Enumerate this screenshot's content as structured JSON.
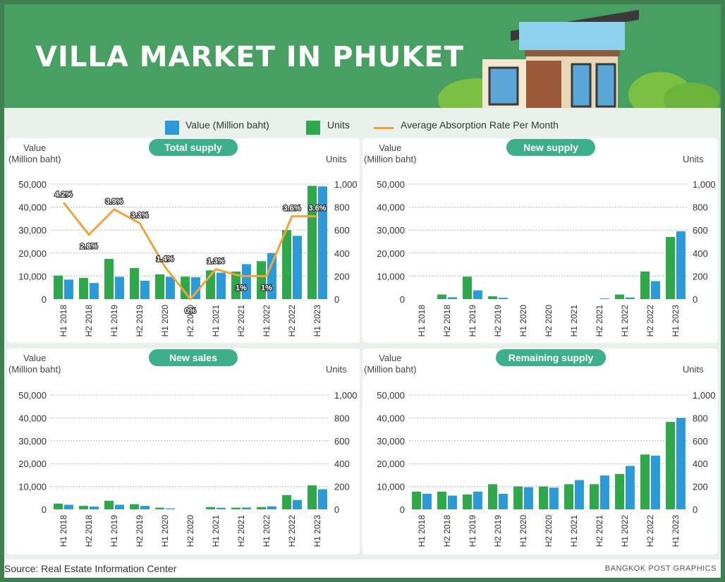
{
  "title": "VILLA MARKET IN PHUKET",
  "legend": {
    "value": "Value (Million baht)",
    "units": "Units",
    "rate": "Average Absorption Rate Per Month"
  },
  "colors": {
    "value": "#2b9ad9",
    "units": "#2ea84a",
    "rate": "#f2a33a",
    "pill": "#3db08a"
  },
  "axis_titles": {
    "left": "Value\n(Million baht)",
    "right": "Units"
  },
  "source": "Source: Real Estate Information Center",
  "credit": "BANGKOK POST GRAPHICS",
  "chart_data": [
    {
      "type": "bar",
      "title": "Total supply",
      "categories": [
        "H1 2018",
        "H2 2018",
        "H1 2019",
        "H2 2019",
        "H1 2020",
        "H2 2020",
        "H1 2021",
        "H2 2021",
        "H1 2022",
        "H2 2022",
        "H1 2023"
      ],
      "ylim": [
        0,
        50000
      ],
      "y2lim": [
        0,
        1000
      ],
      "yticks": [
        "0",
        "10,000",
        "20,000",
        "30,000",
        "40,000",
        "50,000"
      ],
      "y2ticks": [
        "0",
        "200",
        "400",
        "600",
        "800",
        "1,000"
      ],
      "series": [
        {
          "name": "Units",
          "axis": "right",
          "values": [
            205,
            185,
            350,
            270,
            215,
            195,
            250,
            240,
            330,
            600,
            985
          ]
        },
        {
          "name": "Value (Million baht)",
          "axis": "right_value",
          "values": [
            8500,
            7000,
            9700,
            8000,
            9700,
            9500,
            11500,
            15200,
            20000,
            27500,
            49000
          ]
        },
        {
          "name": "Average Absorption Rate Per Month",
          "type": "line",
          "values": [
            4.2,
            2.8,
            3.9,
            3.3,
            1.4,
            0,
            1.3,
            1,
            1,
            3.6,
            3.6
          ],
          "labels": [
            "4.2%",
            "2.8%",
            "3.9%",
            "3.3%",
            "1.4%",
            "0%",
            "1.3%",
            "1%",
            "1%",
            "3.6%",
            "3.6%"
          ]
        }
      ]
    },
    {
      "type": "bar",
      "title": "New supply",
      "categories": [
        "H1 2018",
        "H2 2018",
        "H1 2019",
        "H2 2019",
        "H1 2020",
        "H2 2020",
        "H1 2021",
        "H2 2021",
        "H1 2022",
        "H2 2022",
        "H1 2023"
      ],
      "ylim": [
        0,
        50000
      ],
      "y2lim": [
        0,
        1000
      ],
      "yticks": [
        "0",
        "10,000",
        "20,000",
        "30,000",
        "40,000",
        "50,000"
      ],
      "y2ticks": [
        "0",
        "200",
        "400",
        "600",
        "800",
        "1,000"
      ],
      "series": [
        {
          "name": "Units",
          "values": [
            0,
            40,
            195,
            25,
            0,
            0,
            0,
            0,
            40,
            240,
            540
          ]
        },
        {
          "name": "Value (Million baht)",
          "values": [
            0,
            800,
            3800,
            600,
            0,
            0,
            0,
            300,
            700,
            7800,
            29500
          ]
        }
      ]
    },
    {
      "type": "bar",
      "title": "New sales",
      "categories": [
        "H1 2018",
        "H2 2018",
        "H1 2019",
        "H2 2019",
        "H1 2020",
        "H2 2020",
        "H1 2021",
        "H2 2021",
        "H1 2022",
        "H2 2022",
        "H1 2023"
      ],
      "ylim": [
        0,
        50000
      ],
      "y2lim": [
        0,
        1000
      ],
      "yticks": [
        "0",
        "10,000",
        "20,000",
        "30,000",
        "40,000",
        "50,000"
      ],
      "y2ticks": [
        "0",
        "200",
        "400",
        "600",
        "800",
        "1,000"
      ],
      "series": [
        {
          "name": "Units",
          "values": [
            50,
            30,
            75,
            45,
            15,
            0,
            20,
            15,
            20,
            125,
            210
          ]
        },
        {
          "name": "Value (Million baht)",
          "values": [
            2000,
            1200,
            2000,
            1500,
            400,
            0,
            700,
            800,
            1300,
            4100,
            8800
          ]
        }
      ]
    },
    {
      "type": "bar",
      "title": "Remaining supply",
      "categories": [
        "H1 2018",
        "H2 2018",
        "H1 2019",
        "H2 2019",
        "H1 2020",
        "H2 2020",
        "H1 2021",
        "H2 2021",
        "H1 2022",
        "H2 2022",
        "H1 2023"
      ],
      "ylim": [
        0,
        50000
      ],
      "y2lim": [
        0,
        1000
      ],
      "yticks": [
        "0",
        "10,000",
        "20,000",
        "30,000",
        "40,000",
        "50,000"
      ],
      "y2ticks": [
        "0",
        "200",
        "400",
        "600",
        "800",
        "1,000"
      ],
      "series": [
        {
          "name": "Units",
          "values": [
            155,
            155,
            130,
            220,
            200,
            200,
            220,
            220,
            310,
            480,
            765
          ]
        },
        {
          "name": "Value (Million baht)",
          "values": [
            6800,
            6000,
            7800,
            6800,
            9700,
            9500,
            12800,
            14800,
            19000,
            23500,
            40000
          ]
        }
      ]
    }
  ]
}
